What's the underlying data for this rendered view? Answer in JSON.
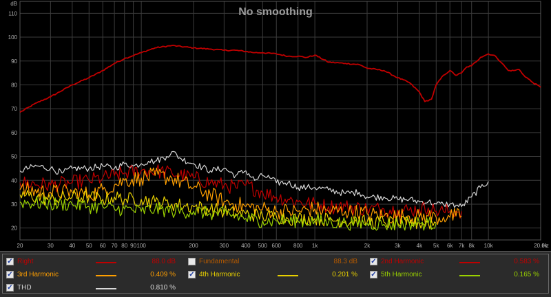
{
  "chart_data": {
    "type": "line",
    "title": "No smoothing",
    "ylabel": "dB",
    "xlabel": "Hz",
    "x_scale": "log",
    "xlim": [
      20,
      20000
    ],
    "ylim": [
      15,
      115
    ],
    "grid": true,
    "y_ticks": [
      20,
      30,
      40,
      50,
      60,
      70,
      80,
      90,
      100,
      110
    ],
    "x_ticks": [
      {
        "v": 20,
        "label": "20"
      },
      {
        "v": 30,
        "label": "30"
      },
      {
        "v": 40,
        "label": "40"
      },
      {
        "v": 50,
        "label": "50"
      },
      {
        "v": 60,
        "label": "60"
      },
      {
        "v": 70,
        "label": "70"
      },
      {
        "v": 80,
        "label": "80"
      },
      {
        "v": 90,
        "label": "90"
      },
      {
        "v": 100,
        "label": "100"
      },
      {
        "v": 200,
        "label": "200"
      },
      {
        "v": 300,
        "label": "300"
      },
      {
        "v": 400,
        "label": "400"
      },
      {
        "v": 500,
        "label": "500"
      },
      {
        "v": 600,
        "label": "600"
      },
      {
        "v": 800,
        "label": "800"
      },
      {
        "v": 1000,
        "label": "1k"
      },
      {
        "v": 2000,
        "label": "2k"
      },
      {
        "v": 3000,
        "label": "3k"
      },
      {
        "v": 4000,
        "label": "4k"
      },
      {
        "v": 5000,
        "label": "5k"
      },
      {
        "v": 6000,
        "label": "6k"
      },
      {
        "v": 7000,
        "label": "7k"
      },
      {
        "v": 8000,
        "label": "8k"
      },
      {
        "v": 10000,
        "label": "10k"
      },
      {
        "v": 20000,
        "label": "20.0k"
      }
    ],
    "series": [
      {
        "name": "Right",
        "color": "#c00000",
        "x": [
          20,
          25,
          30,
          40,
          50,
          60,
          70,
          80,
          100,
          120,
          150,
          200,
          250,
          300,
          350,
          400,
          450,
          500,
          600,
          700,
          800,
          900,
          1000,
          1200,
          1500,
          1800,
          2000,
          2500,
          3000,
          3500,
          4000,
          4300,
          4700,
          5000,
          5500,
          6000,
          6500,
          7000,
          7500,
          8000,
          9000,
          10000,
          11000,
          12000,
          13000,
          14000,
          15000,
          16000,
          18000,
          20000
        ],
        "y": [
          68.5,
          72.5,
          75,
          80,
          83,
          86,
          89,
          91,
          93.5,
          95.5,
          96.5,
          95.5,
          95,
          94.5,
          94.5,
          94,
          93.5,
          93.5,
          93,
          92,
          92,
          91.5,
          92.5,
          89.5,
          89,
          88.5,
          87,
          86,
          83,
          81,
          77,
          73,
          74,
          80,
          84,
          86,
          84,
          85,
          87.5,
          88,
          91.5,
          93,
          92,
          89,
          86,
          86,
          86.5,
          84,
          81,
          79
        ]
      },
      {
        "name": "THD",
        "color": "#d8d8d8",
        "x": [
          20,
          25,
          30,
          35,
          40,
          50,
          60,
          70,
          80,
          90,
          100,
          110,
          120,
          140,
          150,
          170,
          200,
          250,
          300,
          350,
          400,
          450,
          500,
          550,
          600,
          700,
          800,
          900,
          1000,
          1200,
          1500,
          1800,
          2000,
          2500,
          3000,
          3500,
          4000,
          4500,
          5000,
          5500,
          6000,
          6500,
          7000,
          8000,
          9000,
          10000
        ],
        "y": [
          44,
          46,
          45,
          43,
          45,
          45,
          46,
          45,
          47,
          46,
          47,
          48,
          48,
          50,
          52,
          49,
          47,
          44,
          45,
          42,
          44,
          40,
          42,
          41,
          39,
          39,
          37,
          37,
          37,
          36,
          34.5,
          35,
          33,
          33,
          32,
          32,
          31,
          31,
          30,
          30,
          30,
          29.5,
          29,
          33,
          37,
          39.5
        ]
      },
      {
        "name": "2nd Harmonic",
        "color": "#c00000",
        "x": [
          20,
          30,
          40,
          50,
          60,
          70,
          80,
          100,
          120,
          150,
          200,
          250,
          300,
          350,
          400,
          500,
          600,
          700,
          800,
          1000,
          1200,
          1500,
          2000,
          2500,
          3000,
          3500,
          4000,
          4500,
          5000,
          5500,
          6000,
          6500,
          7000
        ],
        "y": [
          39,
          38,
          39,
          40,
          41,
          42,
          43,
          44,
          44,
          43,
          41,
          39,
          38,
          37,
          38,
          35,
          33,
          32,
          31,
          30,
          29,
          29,
          28,
          28,
          27.5,
          27.5,
          28,
          28.5,
          27,
          27,
          27,
          27,
          27
        ]
      },
      {
        "name": "3rd Harmonic",
        "color": "#ff9f00",
        "x": [
          20,
          30,
          40,
          50,
          60,
          70,
          80,
          100,
          120,
          150,
          200,
          250,
          300,
          350,
          400,
          500,
          600,
          700,
          800,
          1000,
          1200,
          1500,
          2000,
          2500,
          3000,
          3500,
          4000,
          4500,
          5000,
          5500,
          6000,
          6500,
          7000
        ],
        "y": [
          36,
          35,
          35,
          34,
          36,
          38,
          40,
          41,
          42,
          41,
          37,
          34,
          31,
          30,
          29,
          28,
          27,
          27,
          27,
          28,
          27,
          27,
          26,
          25,
          25,
          25,
          24.5,
          25,
          24.5,
          24.5,
          24.5,
          25,
          25
        ]
      },
      {
        "name": "4th Harmonic",
        "color": "#e8d000",
        "x": [
          20,
          30,
          40,
          50,
          60,
          70,
          80,
          100,
          120,
          150,
          200,
          250,
          300,
          350,
          400,
          500,
          600,
          700,
          800,
          1000,
          1200,
          1500,
          2000,
          2500,
          3000,
          3500,
          4000,
          4500,
          5000
        ],
        "y": [
          34,
          32,
          33,
          33,
          32,
          33,
          32,
          32,
          31,
          30,
          29,
          28,
          27,
          26,
          26,
          25,
          25,
          24,
          24,
          24,
          23.5,
          23,
          22.5,
          22.5,
          22,
          22,
          22,
          22,
          22
        ]
      },
      {
        "name": "5th Harmonic",
        "color": "#9ad100",
        "x": [
          20,
          30,
          40,
          50,
          60,
          70,
          80,
          100,
          120,
          150,
          200,
          250,
          300,
          350,
          400,
          500,
          600,
          700,
          800,
          1000,
          1200,
          1500,
          2000,
          2500,
          3000,
          3500,
          4000,
          4500,
          5000
        ],
        "y": [
          31,
          30,
          30,
          29,
          29,
          28,
          28,
          27,
          28,
          27,
          27,
          26,
          26,
          25,
          24,
          23,
          23,
          23,
          23,
          23,
          22.5,
          22,
          22,
          21.5,
          21.5,
          22,
          22,
          22,
          22
        ]
      }
    ]
  },
  "legend": {
    "items": [
      {
        "key": "right",
        "name": "Right",
        "value": "88.0 dB",
        "checked": true,
        "name_color": "#c00000",
        "line_color": "#c00000",
        "value_color": "#c00000"
      },
      {
        "key": "fundamental",
        "name": "Fundamental",
        "value": "88.3 dB",
        "checked": false,
        "name_color": "#b35900",
        "line_color": "",
        "value_color": "#b35900"
      },
      {
        "key": "h2",
        "name": "2nd Harmonic",
        "value": "0.583 %",
        "checked": true,
        "name_color": "#c00000",
        "line_color": "#c00000",
        "value_color": "#c00000"
      },
      {
        "key": "h3",
        "name": "3rd Harmonic",
        "value": "0.409 %",
        "checked": true,
        "name_color": "#ff9f00",
        "line_color": "#ff9f00",
        "value_color": "#ff9f00"
      },
      {
        "key": "h4",
        "name": "4th Harmonic",
        "value": "0.201 %",
        "checked": true,
        "name_color": "#e8d000",
        "line_color": "#e8d000",
        "value_color": "#e8d000"
      },
      {
        "key": "h5",
        "name": "5th Harmonic",
        "value": "0.165 %",
        "checked": true,
        "name_color": "#9ad100",
        "line_color": "#9ad100",
        "value_color": "#9ad100"
      },
      {
        "key": "thd",
        "name": "THD",
        "value": "0.810 %",
        "checked": true,
        "name_color": "#d8d8d8",
        "line_color": "#d8d8d8",
        "value_color": "#d8d8d8"
      }
    ]
  }
}
